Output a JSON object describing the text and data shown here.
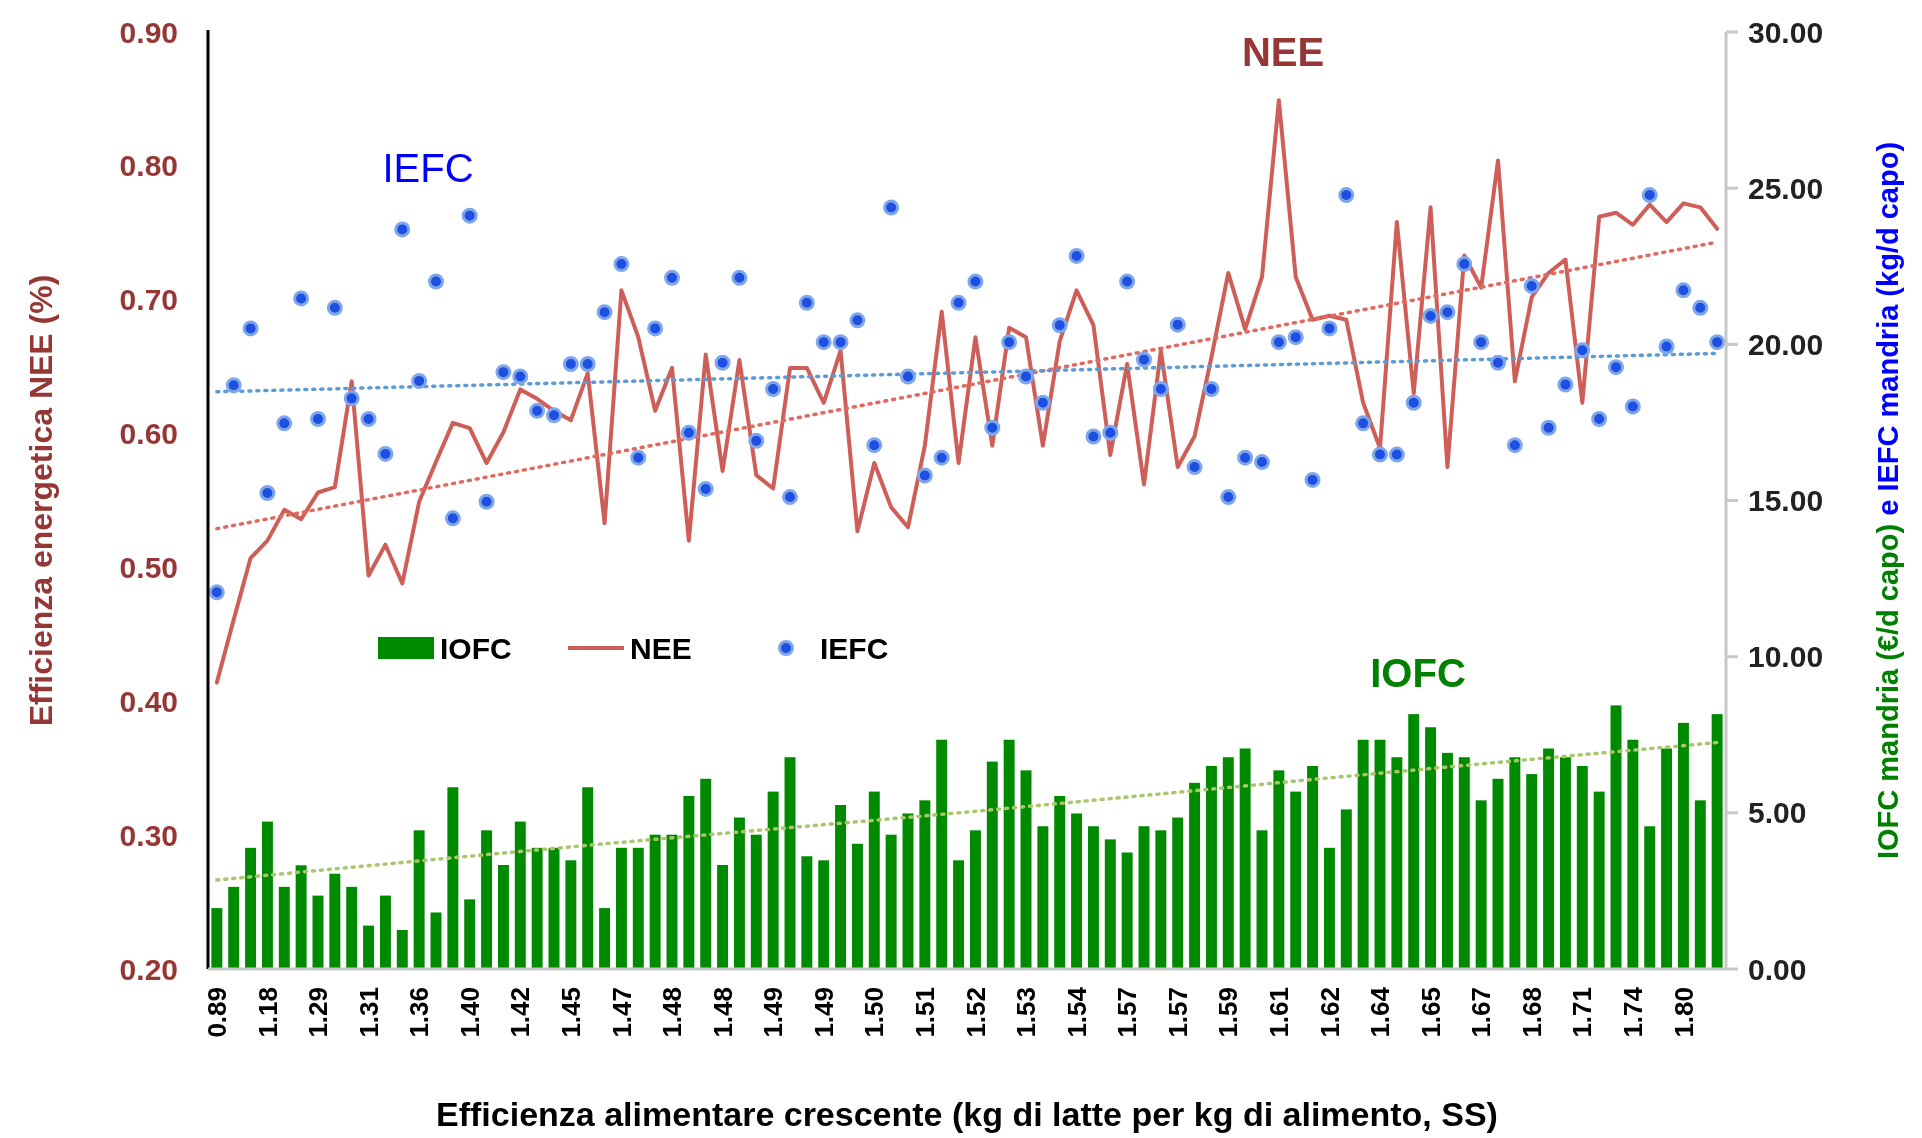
{
  "chart_data": {
    "type": "bar",
    "xlabel": "Efficienza alimentare crescente (kg di latte per kg di alimento, SS)",
    "ylabel": "Efficienza energetica NEE (%)",
    "y2label": "IOFC mandria (€/d capo) e IEFC mandria (kg/d capo)",
    "categories": [
      "0.89",
      null,
      null,
      "1.18",
      null,
      null,
      "1.29",
      null,
      null,
      "1.31",
      null,
      null,
      "1.36",
      null,
      null,
      "1.40",
      null,
      null,
      "1.42",
      null,
      null,
      "1.45",
      null,
      null,
      "1.47",
      null,
      null,
      "1.48",
      null,
      null,
      "1.48",
      null,
      null,
      "1.49",
      null,
      null,
      "1.49",
      null,
      null,
      "1.50",
      null,
      null,
      "1.51",
      null,
      null,
      "1.52",
      null,
      null,
      "1.53",
      null,
      null,
      "1.54",
      null,
      null,
      "1.57",
      null,
      null,
      "1.57",
      null,
      null,
      "1.59",
      null,
      null,
      "1.61",
      null,
      null,
      "1.62",
      null,
      null,
      "1.64",
      null,
      null,
      "1.65",
      null,
      null,
      "1.67",
      null,
      null,
      "1.68",
      null,
      null,
      "1.71",
      null,
      null,
      "1.74",
      null,
      null,
      "1.80",
      null,
      null
    ],
    "ylim": [
      0.2,
      0.9
    ],
    "yticks": [
      {
        "value": 0.2,
        "label": "0.20"
      },
      {
        "value": 0.3,
        "label": "0.30"
      },
      {
        "value": 0.4,
        "label": "0.40"
      },
      {
        "value": 0.5,
        "label": "0.50"
      },
      {
        "value": 0.6,
        "label": "0.60"
      },
      {
        "value": 0.7,
        "label": "0.70"
      },
      {
        "value": 0.8,
        "label": "0.80"
      },
      {
        "value": 0.9,
        "label": "0.90"
      }
    ],
    "y2lim": [
      0,
      30
    ],
    "y2ticks": [
      {
        "value": 0,
        "label": "0.00"
      },
      {
        "value": 5,
        "label": "5.00"
      },
      {
        "value": 10,
        "label": "10.00"
      },
      {
        "value": 15,
        "label": "15.00"
      },
      {
        "value": 20,
        "label": "20.00"
      },
      {
        "value": 25,
        "label": "25.00"
      },
      {
        "value": 30,
        "label": "30.00"
      }
    ],
    "legend": "left",
    "annotations": [
      "IOFC",
      "NEE",
      "IEFC"
    ],
    "series": [
      {
        "name": "IOFC",
        "axis": "y2",
        "color": "#008a00",
        "values": [
          1.95,
          2.63,
          3.88,
          4.72,
          2.63,
          3.32,
          2.35,
          3.05,
          2.63,
          1.39,
          2.35,
          1.25,
          4.44,
          1.81,
          5.82,
          2.23,
          4.44,
          3.33,
          4.72,
          3.88,
          3.88,
          3.48,
          5.82,
          1.95,
          3.88,
          3.88,
          4.3,
          4.3,
          5.54,
          6.09,
          3.33,
          4.85,
          4.3,
          5.68,
          6.78,
          3.61,
          3.48,
          5.25,
          4.01,
          5.68,
          4.3,
          4.98,
          5.4,
          7.34,
          3.48,
          4.44,
          6.64,
          7.34,
          6.36,
          4.57,
          5.54,
          4.98,
          4.57,
          4.15,
          3.73,
          4.57,
          4.44,
          4.85,
          5.96,
          6.5,
          6.78,
          7.06,
          4.44,
          6.36,
          5.68,
          6.5,
          3.88,
          5.11,
          7.34,
          7.34,
          6.78,
          8.16,
          7.74,
          6.92,
          6.78,
          5.4,
          6.09,
          6.78,
          6.24,
          7.06,
          6.78,
          6.5,
          5.68,
          8.44,
          7.34,
          4.57,
          7.06,
          7.88,
          5.4,
          8.16
        ]
      },
      {
        "name": "NEE",
        "type": "line",
        "color": "#cd5f58",
        "line_style": "solid",
        "marker": "none",
        "values": [
          0.414,
          0.461,
          0.507,
          0.52,
          0.543,
          0.536,
          0.556,
          0.56,
          0.639,
          0.494,
          0.517,
          0.488,
          0.549,
          0.579,
          0.608,
          0.604,
          0.578,
          0.601,
          0.633,
          0.626,
          0.617,
          0.61,
          0.645,
          0.533,
          0.707,
          0.672,
          0.617,
          0.649,
          0.52,
          0.659,
          0.572,
          0.655,
          0.569,
          0.559,
          0.649,
          0.649,
          0.623,
          0.662,
          0.527,
          0.578,
          0.545,
          0.53,
          0.591,
          0.691,
          0.578,
          0.672,
          0.591,
          0.679,
          0.672,
          0.591,
          0.669,
          0.707,
          0.681,
          0.584,
          0.652,
          0.562,
          0.662,
          0.575,
          0.598,
          0.657,
          0.72,
          0.678,
          0.717,
          0.849,
          0.717,
          0.685,
          0.688,
          0.685,
          0.623,
          0.589,
          0.758,
          0.63,
          0.769,
          0.575,
          0.733,
          0.709,
          0.804,
          0.639,
          0.702,
          0.72,
          0.73,
          0.623,
          0.762,
          0.765,
          0.756,
          0.771,
          0.758,
          0.772,
          0.769,
          0.753
        ]
      },
      {
        "name": "IEFC",
        "type": "scatter",
        "axis": "y2",
        "color": "#1f4fe0",
        "marker": "circle",
        "values": [
          12.06,
          18.69,
          20.51,
          15.24,
          17.47,
          21.47,
          17.61,
          21.17,
          18.27,
          17.61,
          16.49,
          23.68,
          18.83,
          22.01,
          14.43,
          24.12,
          14.96,
          19.11,
          18.97,
          17.87,
          17.73,
          19.37,
          19.37,
          21.03,
          22.57,
          16.37,
          20.51,
          22.13,
          17.17,
          15.37,
          19.41,
          22.13,
          16.91,
          18.57,
          15.11,
          21.33,
          20.07,
          20.07,
          20.77,
          16.77,
          24.38,
          18.97,
          15.8,
          16.37,
          21.33,
          22.01,
          17.33,
          20.07,
          18.97,
          18.13,
          20.61,
          22.83,
          17.05,
          17.17,
          22.01,
          19.51,
          18.57,
          20.63,
          16.07,
          18.57,
          15.11,
          16.37,
          16.23,
          20.07,
          20.23,
          15.66,
          20.51,
          24.78,
          17.47,
          16.47,
          16.47,
          18.13,
          20.91,
          21.03,
          22.57,
          20.07,
          19.41,
          16.77,
          21.87,
          17.33,
          18.71,
          19.81,
          17.61,
          19.27,
          18.01,
          24.78,
          19.93,
          21.73,
          21.17,
          20.07
        ]
      },
      {
        "type": "line",
        "axis": "y2",
        "color": "#a9c66c",
        "line_style": "dotted",
        "marker": "none",
        "values": [
          2.85,
          null,
          null,
          null,
          null,
          null,
          null,
          null,
          null,
          null,
          null,
          null,
          null,
          null,
          null,
          null,
          null,
          null,
          null,
          null,
          null,
          null,
          3.96,
          null,
          null,
          null,
          null,
          null,
          null,
          null,
          null,
          null,
          null,
          null,
          null,
          null,
          null,
          null,
          null,
          null,
          null,
          null,
          null,
          null,
          null,
          5.05,
          null,
          null,
          null,
          null,
          null,
          null,
          null,
          null,
          null,
          null,
          null,
          null,
          null,
          null,
          null,
          null,
          null,
          null,
          null,
          null,
          null,
          null,
          6.22,
          null,
          null,
          null,
          null,
          null,
          null,
          null,
          null,
          null,
          null,
          null,
          null,
          null,
          null,
          null,
          null,
          null,
          null,
          null,
          null,
          7.25
        ]
      },
      {
        "type": "line",
        "color": "#e06a60",
        "line_style": "dotted",
        "marker": "none",
        "values": [
          0.529,
          null,
          null,
          null,
          null,
          null,
          null,
          null,
          null,
          null,
          null,
          null,
          null,
          null,
          null,
          null,
          null,
          null,
          null,
          null,
          null,
          null,
          null,
          null,
          null,
          null,
          null,
          null,
          null,
          null,
          null,
          null,
          null,
          null,
          null,
          null,
          null,
          null,
          null,
          null,
          null,
          null,
          null,
          null,
          null,
          null,
          null,
          null,
          null,
          null,
          null,
          null,
          null,
          null,
          null,
          null,
          null,
          null,
          null,
          null,
          null,
          null,
          null,
          null,
          null,
          null,
          null,
          null,
          null,
          null,
          null,
          null,
          null,
          null,
          null,
          null,
          null,
          null,
          null,
          null,
          null,
          null,
          null,
          null,
          null,
          null,
          null,
          null,
          null,
          0.743
        ]
      },
      {
        "type": "line",
        "axis": "y2",
        "color": "#5b9bd5",
        "line_style": "dotted",
        "marker": "none",
        "values": [
          18.48,
          null,
          null,
          null,
          null,
          null,
          null,
          null,
          null,
          null,
          null,
          null,
          null,
          null,
          null,
          null,
          null,
          null,
          null,
          null,
          null,
          null,
          null,
          null,
          null,
          null,
          null,
          null,
          null,
          null,
          null,
          null,
          null,
          null,
          null,
          null,
          null,
          null,
          null,
          null,
          null,
          null,
          null,
          null,
          null,
          null,
          null,
          null,
          null,
          null,
          null,
          null,
          null,
          null,
          null,
          null,
          null,
          null,
          null,
          null,
          null,
          null,
          null,
          null,
          null,
          null,
          null,
          null,
          null,
          null,
          null,
          null,
          null,
          null,
          null,
          null,
          null,
          null,
          null,
          null,
          null,
          null,
          null,
          null,
          null,
          null,
          null,
          null,
          null,
          19.71
        ]
      }
    ]
  }
}
